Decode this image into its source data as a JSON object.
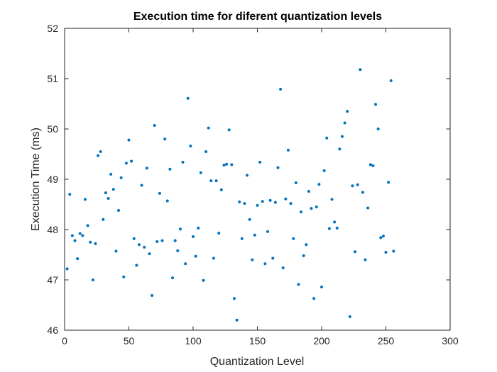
{
  "chart_data": {
    "type": "scatter",
    "title": "Execution time for diferent quantization levels",
    "xlabel": "Quantization Level",
    "ylabel": "Execution Time (ms)",
    "xlim": [
      0,
      300
    ],
    "ylim": [
      46,
      52
    ],
    "xticks": [
      "0",
      "50",
      "100",
      "150",
      "200",
      "250",
      "300"
    ],
    "yticks": [
      "46",
      "47",
      "48",
      "49",
      "50",
      "51",
      "52"
    ],
    "grid": false,
    "legend": "none",
    "marker_color": "#0072BD",
    "series": [
      {
        "points": [
          [
            2,
            47.22
          ],
          [
            4,
            48.7
          ],
          [
            6,
            47.88
          ],
          [
            8,
            47.78
          ],
          [
            10,
            47.42
          ],
          [
            12,
            47.92
          ],
          [
            14,
            47.88
          ],
          [
            16,
            48.6
          ],
          [
            18,
            48.08
          ],
          [
            20,
            47.75
          ],
          [
            22,
            47.0
          ],
          [
            24,
            47.72
          ],
          [
            26,
            49.47
          ],
          [
            28,
            49.55
          ],
          [
            30,
            48.2
          ],
          [
            32,
            48.73
          ],
          [
            34,
            48.62
          ],
          [
            36,
            49.1
          ],
          [
            38,
            48.8
          ],
          [
            40,
            47.57
          ],
          [
            42,
            48.38
          ],
          [
            44,
            49.03
          ],
          [
            46,
            47.06
          ],
          [
            48,
            49.32
          ],
          [
            50,
            49.78
          ],
          [
            52,
            49.36
          ],
          [
            54,
            47.82
          ],
          [
            56,
            47.29
          ],
          [
            58,
            47.7
          ],
          [
            60,
            48.88
          ],
          [
            62,
            47.65
          ],
          [
            64,
            49.22
          ],
          [
            66,
            47.52
          ],
          [
            68,
            46.69
          ],
          [
            70,
            50.07
          ],
          [
            72,
            47.76
          ],
          [
            74,
            48.72
          ],
          [
            76,
            47.78
          ],
          [
            78,
            49.8
          ],
          [
            80,
            48.57
          ],
          [
            82,
            49.2
          ],
          [
            84,
            47.04
          ],
          [
            86,
            47.78
          ],
          [
            88,
            47.58
          ],
          [
            90,
            48.01
          ],
          [
            92,
            49.34
          ],
          [
            94,
            47.32
          ],
          [
            96,
            50.61
          ],
          [
            98,
            49.66
          ],
          [
            100,
            47.86
          ],
          [
            102,
            47.47
          ],
          [
            104,
            48.03
          ],
          [
            106,
            49.13
          ],
          [
            108,
            46.99
          ],
          [
            110,
            49.55
          ],
          [
            112,
            50.02
          ],
          [
            114,
            48.97
          ],
          [
            116,
            47.43
          ],
          [
            118,
            48.97
          ],
          [
            120,
            47.93
          ],
          [
            122,
            48.79
          ],
          [
            124,
            49.28
          ],
          [
            126,
            49.3
          ],
          [
            128,
            49.98
          ],
          [
            130,
            49.29
          ],
          [
            132,
            46.63
          ],
          [
            134,
            46.2
          ],
          [
            136,
            48.55
          ],
          [
            138,
            47.82
          ],
          [
            140,
            48.52
          ],
          [
            142,
            49.08
          ],
          [
            144,
            48.2
          ],
          [
            146,
            47.4
          ],
          [
            148,
            47.89
          ],
          [
            150,
            48.48
          ],
          [
            152,
            49.34
          ],
          [
            154,
            48.56
          ],
          [
            156,
            47.32
          ],
          [
            158,
            47.96
          ],
          [
            160,
            48.58
          ],
          [
            162,
            47.43
          ],
          [
            164,
            48.54
          ],
          [
            166,
            49.23
          ],
          [
            168,
            50.79
          ],
          [
            170,
            47.24
          ],
          [
            172,
            48.61
          ],
          [
            174,
            49.58
          ],
          [
            176,
            48.52
          ],
          [
            178,
            47.82
          ],
          [
            180,
            48.93
          ],
          [
            182,
            46.91
          ],
          [
            184,
            48.35
          ],
          [
            186,
            47.48
          ],
          [
            188,
            47.7
          ],
          [
            190,
            48.76
          ],
          [
            192,
            48.42
          ],
          [
            194,
            46.63
          ],
          [
            196,
            48.45
          ],
          [
            198,
            48.9
          ],
          [
            200,
            46.86
          ],
          [
            202,
            49.17
          ],
          [
            204,
            49.82
          ],
          [
            206,
            48.02
          ],
          [
            208,
            48.6
          ],
          [
            210,
            48.15
          ],
          [
            212,
            48.03
          ],
          [
            214,
            49.6
          ],
          [
            216,
            49.85
          ],
          [
            218,
            50.12
          ],
          [
            220,
            50.35
          ],
          [
            222,
            46.27
          ],
          [
            224,
            48.87
          ],
          [
            226,
            47.56
          ],
          [
            228,
            48.89
          ],
          [
            230,
            51.18
          ],
          [
            232,
            48.74
          ],
          [
            234,
            47.4
          ],
          [
            236,
            48.43
          ],
          [
            238,
            49.29
          ],
          [
            240,
            49.27
          ],
          [
            242,
            50.49
          ],
          [
            244,
            50.0
          ],
          [
            246,
            47.84
          ],
          [
            248,
            47.87
          ],
          [
            250,
            47.55
          ],
          [
            252,
            48.94
          ],
          [
            254,
            50.96
          ],
          [
            256,
            47.57
          ]
        ]
      }
    ]
  }
}
